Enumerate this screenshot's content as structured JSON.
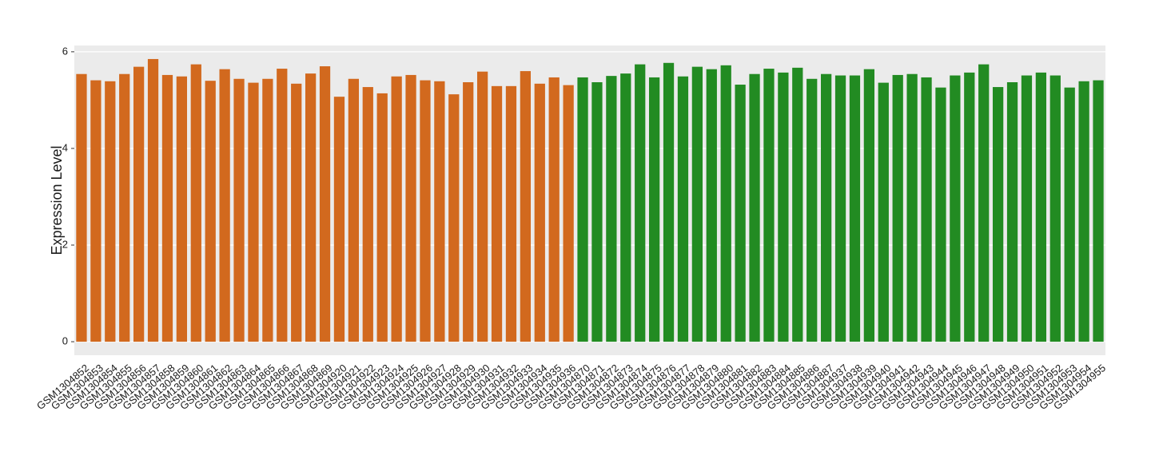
{
  "chart_data": {
    "type": "bar",
    "y_label": "Expression Level",
    "categories": [
      "GSM1304852",
      "GSM1304853",
      "GSM1304854",
      "GSM1304855",
      "GSM1304856",
      "GSM1304857",
      "GSM1304858",
      "GSM1304859",
      "GSM1304860",
      "GSM1304861",
      "GSM1304862",
      "GSM1304863",
      "GSM1304864",
      "GSM1304865",
      "GSM1304866",
      "GSM1304867",
      "GSM1304868",
      "GSM1304869",
      "GSM1304920",
      "GSM1304921",
      "GSM1304922",
      "GSM1304923",
      "GSM1304924",
      "GSM1304925",
      "GSM1304926",
      "GSM1304927",
      "GSM1304928",
      "GSM1304929",
      "GSM1304930",
      "GSM1304931",
      "GSM1304932",
      "GSM1304933",
      "GSM1304934",
      "GSM1304935",
      "GSM1304936",
      "GSM1304870",
      "GSM1304871",
      "GSM1304872",
      "GSM1304873",
      "GSM1304874",
      "GSM1304875",
      "GSM1304876",
      "GSM1304877",
      "GSM1304878",
      "GSM1304879",
      "GSM1304880",
      "GSM1304881",
      "GSM1304882",
      "GSM1304883",
      "GSM1304884",
      "GSM1304885",
      "GSM1304886",
      "GSM1304887",
      "GSM1304937",
      "GSM1304938",
      "GSM1304939",
      "GSM1304940",
      "GSM1304941",
      "GSM1304942",
      "GSM1304943",
      "GSM1304944",
      "GSM1304945",
      "GSM1304946",
      "GSM1304947",
      "GSM1304948",
      "GSM1304949",
      "GSM1304950",
      "GSM1304951",
      "GSM1304952",
      "GSM1304953",
      "GSM1304954",
      "GSM1304955"
    ],
    "values": [
      5.54,
      5.41,
      5.39,
      5.54,
      5.69,
      5.85,
      5.52,
      5.49,
      5.74,
      5.4,
      5.64,
      5.44,
      5.36,
      5.44,
      5.65,
      5.34,
      5.55,
      5.7,
      5.07,
      5.44,
      5.27,
      5.14,
      5.49,
      5.52,
      5.41,
      5.39,
      5.12,
      5.37,
      5.59,
      5.29,
      5.29,
      5.6,
      5.34,
      5.47,
      5.31,
      5.47,
      5.37,
      5.5,
      5.55,
      5.74,
      5.47,
      5.77,
      5.49,
      5.69,
      5.64,
      5.72,
      5.32,
      5.54,
      5.65,
      5.57,
      5.67,
      5.44,
      5.54,
      5.51,
      5.51,
      5.64,
      5.36,
      5.52,
      5.54,
      5.47,
      5.26,
      5.51,
      5.57,
      5.74,
      5.27,
      5.37,
      5.51,
      5.57,
      5.51,
      5.26,
      5.39,
      5.41
    ],
    "colors": [
      "#d2691e",
      "#d2691e",
      "#d2691e",
      "#d2691e",
      "#d2691e",
      "#d2691e",
      "#d2691e",
      "#d2691e",
      "#d2691e",
      "#d2691e",
      "#d2691e",
      "#d2691e",
      "#d2691e",
      "#d2691e",
      "#d2691e",
      "#d2691e",
      "#d2691e",
      "#d2691e",
      "#d2691e",
      "#d2691e",
      "#d2691e",
      "#d2691e",
      "#d2691e",
      "#d2691e",
      "#d2691e",
      "#d2691e",
      "#d2691e",
      "#d2691e",
      "#d2691e",
      "#d2691e",
      "#d2691e",
      "#d2691e",
      "#d2691e",
      "#d2691e",
      "#d2691e",
      "#228b22",
      "#228b22",
      "#228b22",
      "#228b22",
      "#228b22",
      "#228b22",
      "#228b22",
      "#228b22",
      "#228b22",
      "#228b22",
      "#228b22",
      "#228b22",
      "#228b22",
      "#228b22",
      "#228b22",
      "#228b22",
      "#228b22",
      "#228b22",
      "#228b22",
      "#228b22",
      "#228b22",
      "#228b22",
      "#228b22",
      "#228b22",
      "#228b22",
      "#228b22",
      "#228b22",
      "#228b22",
      "#228b22",
      "#228b22",
      "#228b22",
      "#228b22",
      "#228b22",
      "#228b22",
      "#228b22",
      "#228b22",
      "#228b22"
    ],
    "ylim": [
      -0.28,
      6.13
    ],
    "yticks": [
      0,
      2,
      4,
      6
    ],
    "grid": true
  }
}
